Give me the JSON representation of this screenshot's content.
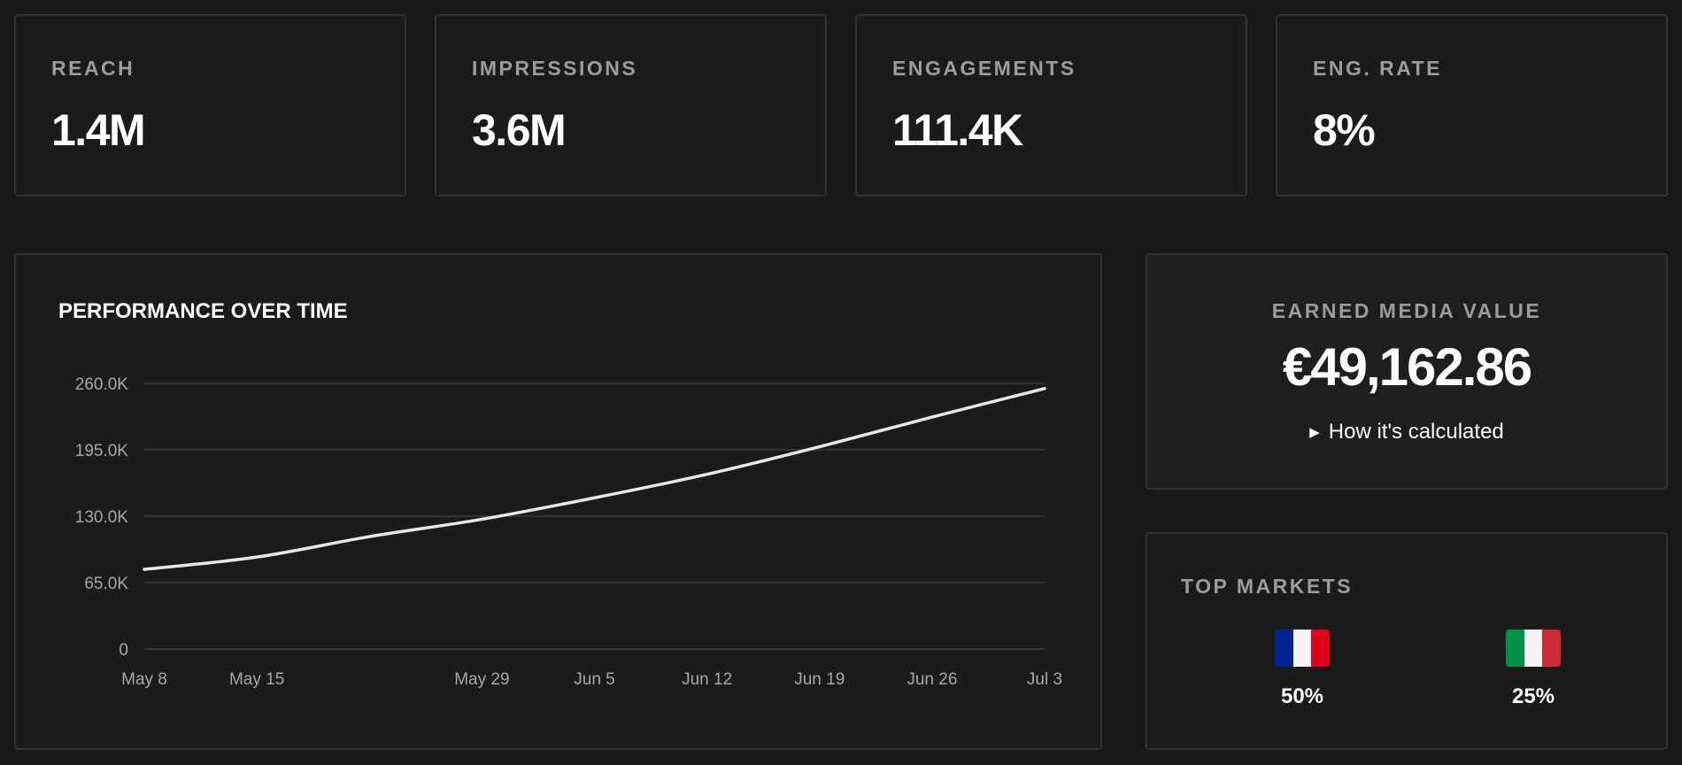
{
  "kpis": [
    {
      "label": "REACH",
      "value": "1.4M"
    },
    {
      "label": "IMPRESSIONS",
      "value": "3.6M"
    },
    {
      "label": "ENGAGEMENTS",
      "value": "111.4K"
    },
    {
      "label": "ENG. RATE",
      "value": "8%"
    }
  ],
  "performance": {
    "title": "PERFORMANCE OVER TIME"
  },
  "chart_data": {
    "type": "line",
    "title": "PERFORMANCE OVER TIME",
    "xlabel": "",
    "ylabel": "",
    "x": [
      "2024-05-08",
      "2024-05-15",
      "2024-05-22",
      "2024-05-29",
      "2024-06-05",
      "2024-06-12",
      "2024-06-19",
      "2024-06-26",
      "2024-07-03"
    ],
    "x_tick_labels": [
      "May 8",
      "May 15",
      "May 29",
      "Jun 5",
      "Jun 12",
      "Jun 19",
      "Jun 26",
      "Jul 3"
    ],
    "x_tick_dates": [
      "2024-05-08",
      "2024-05-15",
      "2024-05-29",
      "2024-06-05",
      "2024-06-12",
      "2024-06-19",
      "2024-06-26",
      "2024-07-03"
    ],
    "y_tick_labels": [
      "0",
      "65.0K",
      "130.0K",
      "195.0K",
      "260.0K"
    ],
    "y_tick_values": [
      0,
      65000,
      130000,
      195000,
      260000
    ],
    "ylim": [
      0,
      260000
    ],
    "grid": true,
    "series": [
      {
        "values": [
          78000,
          90000,
          110000,
          127000,
          148000,
          171000,
          198000,
          227000,
          255000
        ]
      }
    ],
    "line_color": "#e8e8e8"
  },
  "emv": {
    "label": "EARNED MEDIA VALUE",
    "value": "€49,162.86",
    "link_label": "How it's calculated"
  },
  "top_markets": {
    "label": "TOP MARKETS",
    "markets": [
      {
        "flag": "france-flag",
        "pct": "50%",
        "colors": [
          "#002395",
          "#f4f4f4",
          "#e1001a"
        ]
      },
      {
        "flag": "italy-flag",
        "pct": "25%",
        "colors": [
          "#009246",
          "#f4f4f4",
          "#ce2b37"
        ]
      }
    ]
  }
}
